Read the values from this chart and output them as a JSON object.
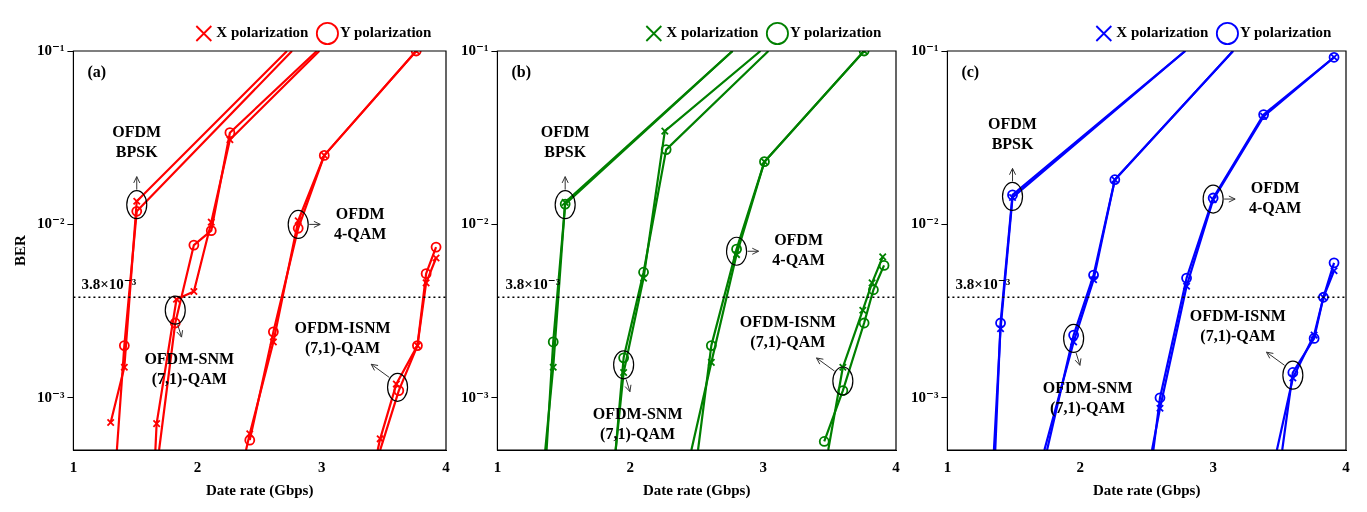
{
  "chart_data": [
    {
      "type": "line",
      "title": "(a)",
      "xlabel": "Date rate (Gbps)",
      "ylabel": "BER",
      "xlim": [
        1,
        4
      ],
      "xticks": [
        1,
        2,
        3,
        4
      ],
      "ylim": [
        0.0005,
        0.1
      ],
      "yticks": [
        {
          "value": 0.001,
          "label": "10⁻³"
        },
        {
          "value": 0.01,
          "label": "10⁻²"
        },
        {
          "value": 0.1,
          "label": "10⁻¹"
        }
      ],
      "log": "y",
      "legend": "top right",
      "line_style": "solid",
      "ref_lines": [
        {
          "axis": "y",
          "value": 0.0038,
          "label": "3.8×10⁻³",
          "color": "#000000",
          "line_style": "dotted"
        }
      ],
      "annotations": [
        {
          "text": "OFDM\nBPSK",
          "x": 1.51,
          "y": 0.013
        },
        {
          "text": "OFDM-SNM\n(7,1)-QAM",
          "x": 1.82,
          "y": 0.0032
        },
        {
          "text": "OFDM\n4-QAM",
          "x": 2.81,
          "y": 0.01
        },
        {
          "text": "OFDM-ISNM\n(7,1)-QAM",
          "x": 3.61,
          "y": 0.00115
        }
      ],
      "series": [
        {
          "name": "X polarization",
          "color": "#ff0000",
          "marker": "cross",
          "x": [
            1.3,
            1.41,
            1.51,
            2.72
          ],
          "values": [
            0.00072,
            0.0015,
            0.0136,
            0.1
          ]
        },
        {
          "name": "Y polarization",
          "color": "#ff0000",
          "marker": "circle",
          "x": [
            1.35,
            1.41,
            1.51,
            2.76
          ],
          "values": [
            0.0005,
            0.002,
            0.0119,
            0.1
          ]
        },
        {
          "color": "#ff0000",
          "marker": "cross",
          "x": [
            1.66,
            1.67,
            1.83,
            1.97,
            2.11,
            2.26,
            2.98
          ],
          "values": [
            0.0005,
            0.00071,
            0.0037,
            0.0041,
            0.0103,
            0.0308,
            0.1
          ]
        },
        {
          "color": "#ff0000",
          "marker": "circle",
          "x": [
            1.69,
            1.82,
            1.97,
            2.11,
            2.26,
            2.96
          ],
          "values": [
            0.0005,
            0.0027,
            0.0076,
            0.0092,
            0.0338,
            0.1
          ]
        },
        {
          "color": "#ff0000",
          "marker": "cross",
          "x": [
            2.39,
            2.42,
            2.61,
            2.81,
            3.02,
            3.76
          ],
          "values": [
            0.0005,
            0.00062,
            0.0021,
            0.0105,
            0.025,
            0.1
          ]
        },
        {
          "color": "#ff0000",
          "marker": "circle",
          "x": [
            2.42,
            2.61,
            2.81,
            3.02,
            3.76
          ],
          "values": [
            0.00057,
            0.0024,
            0.0095,
            0.025,
            0.1
          ]
        },
        {
          "color": "#ff0000",
          "marker": "cross",
          "x": [
            3.45,
            3.47,
            3.6,
            3.77,
            3.84,
            3.92
          ],
          "values": [
            0.0005,
            0.00058,
            0.0012,
            0.002,
            0.0046,
            0.0064
          ]
        },
        {
          "color": "#ff0000",
          "marker": "circle",
          "x": [
            3.47,
            3.62,
            3.77,
            3.84,
            3.92
          ],
          "values": [
            0.0005,
            0.0011,
            0.002,
            0.0052,
            0.0074
          ]
        }
      ]
    },
    {
      "type": "line",
      "title": "(b)",
      "xlabel": "Date rate (Gbps)",
      "xlim": [
        1,
        4
      ],
      "xticks": [
        1,
        2,
        3,
        4
      ],
      "ylim": [
        0.0005,
        0.1
      ],
      "yticks": [
        {
          "value": 0.001,
          "label": "10⁻³"
        },
        {
          "value": 0.01,
          "label": "10⁻²"
        },
        {
          "value": 0.1,
          "label": "10⁻¹"
        }
      ],
      "log": "y",
      "legend": "top right",
      "line_style": "solid",
      "ref_lines": [
        {
          "axis": "y",
          "value": 0.0038,
          "label": "3.8×10⁻³",
          "color": "#000000",
          "line_style": "dotted"
        }
      ],
      "annotations": [
        {
          "text": "OFDM\nBPSK",
          "x": 1.51,
          "y": 0.013
        },
        {
          "text": "OFDM-SNM\n(7,1)-QAM",
          "x": 1.95,
          "y": 0.00155
        },
        {
          "text": "OFDM\n4-QAM",
          "x": 2.8,
          "y": 0.007
        },
        {
          "text": "OFDM-ISNM\n(7,1)-QAM",
          "x": 3.6,
          "y": 0.00125
        }
      ],
      "series": [
        {
          "name": "X polarization",
          "color": "#008000",
          "marker": "cross",
          "x": [
            1.36,
            1.42,
            1.51,
            2.77
          ],
          "values": [
            0.0005,
            0.0015,
            0.0134,
            0.1
          ]
        },
        {
          "name": "Y polarization",
          "color": "#008000",
          "marker": "circle",
          "x": [
            1.37,
            1.42,
            1.51,
            2.77
          ],
          "values": [
            0.0005,
            0.0021,
            0.0131,
            0.1
          ]
        },
        {
          "color": "#008000",
          "marker": "cross",
          "x": [
            1.89,
            1.95,
            2.1,
            2.26,
            2.98
          ],
          "values": [
            0.0005,
            0.0014,
            0.0049,
            0.0345,
            0.1
          ]
        },
        {
          "color": "#008000",
          "marker": "circle",
          "x": [
            1.89,
            1.95,
            2.1,
            2.27,
            3.04
          ],
          "values": [
            0.0005,
            0.0017,
            0.0053,
            0.027,
            0.1
          ]
        },
        {
          "color": "#008000",
          "marker": "cross",
          "x": [
            2.46,
            2.61,
            2.8,
            3.01,
            3.76
          ],
          "values": [
            0.0005,
            0.0016,
            0.0067,
            0.023,
            0.1
          ]
        },
        {
          "color": "#008000",
          "marker": "circle",
          "x": [
            2.51,
            2.61,
            2.8,
            3.01,
            3.76
          ],
          "values": [
            0.0005,
            0.002,
            0.0072,
            0.023,
            0.1
          ]
        },
        {
          "color": "#008000",
          "marker": "cross",
          "x": [
            3.49,
            3.6,
            3.75,
            3.82,
            3.9
          ],
          "values": [
            0.0005,
            0.0015,
            0.0032,
            0.0046,
            0.0065
          ]
        },
        {
          "color": "#008000",
          "marker": "circle",
          "x": [
            3.46,
            3.6,
            3.76,
            3.83,
            3.91
          ],
          "values": [
            0.00056,
            0.0011,
            0.0027,
            0.0042,
            0.0058
          ]
        }
      ]
    },
    {
      "type": "line",
      "title": "(c)",
      "xlabel": "Date rate (Gbps)",
      "xlim": [
        1,
        4
      ],
      "xticks": [
        1,
        2,
        3,
        4
      ],
      "ylim": [
        0.0005,
        0.1
      ],
      "yticks": [
        {
          "value": 0.001,
          "label": "10⁻³"
        },
        {
          "value": 0.01,
          "label": "10⁻²"
        },
        {
          "value": 0.1,
          "label": "10⁻¹"
        }
      ],
      "log": "y",
      "legend": "top right",
      "line_style": "solid",
      "ref_lines": [
        {
          "axis": "y",
          "value": 0.0038,
          "label": "3.8×10⁻³",
          "color": "#000000",
          "line_style": "dotted"
        }
      ],
      "annotations": [
        {
          "text": "OFDM\nBPSK",
          "x": 1.49,
          "y": 0.0145
        },
        {
          "text": "OFDM-SNM\n(7,1)-QAM",
          "x": 1.95,
          "y": 0.0022
        },
        {
          "text": "OFDM\n4-QAM",
          "x": 3.0,
          "y": 0.014
        },
        {
          "text": "OFDM-ISNM\n(7,1)-QAM",
          "x": 3.6,
          "y": 0.00135
        }
      ],
      "series": [
        {
          "name": "X polarization",
          "color": "#0000ff",
          "marker": "cross",
          "x": [
            1.35,
            1.4,
            1.49,
            2.79
          ],
          "values": [
            0.0005,
            0.0025,
            0.0143,
            0.1
          ]
        },
        {
          "name": "Y polarization",
          "color": "#0000ff",
          "marker": "circle",
          "x": [
            1.36,
            1.4,
            1.49,
            2.79
          ],
          "values": [
            0.0005,
            0.0027,
            0.0148,
            0.1
          ]
        },
        {
          "color": "#0000ff",
          "marker": "cross",
          "x": [
            1.73,
            1.95,
            2.1,
            2.26,
            3.15
          ],
          "values": [
            0.0005,
            0.0021,
            0.0048,
            0.0181,
            0.1
          ]
        },
        {
          "color": "#0000ff",
          "marker": "circle",
          "x": [
            1.75,
            1.95,
            2.1,
            2.26,
            3.15
          ],
          "values": [
            0.0005,
            0.0023,
            0.0051,
            0.0181,
            0.1
          ]
        },
        {
          "color": "#0000ff",
          "marker": "cross",
          "x": [
            2.54,
            2.6,
            2.8,
            3.0,
            3.38,
            3.91
          ],
          "values": [
            0.0005,
            0.00087,
            0.0044,
            0.0139,
            0.042,
            0.092
          ]
        },
        {
          "color": "#0000ff",
          "marker": "circle",
          "x": [
            2.55,
            2.6,
            2.8,
            3.0,
            3.38,
            3.91
          ],
          "values": [
            0.0005,
            0.001,
            0.0049,
            0.0142,
            0.043,
            0.092
          ]
        },
        {
          "color": "#0000ff",
          "marker": "cross",
          "x": [
            3.48,
            3.6,
            3.76,
            3.83,
            3.91
          ],
          "values": [
            0.0005,
            0.0013,
            0.0023,
            0.0038,
            0.0054
          ]
        },
        {
          "color": "#0000ff",
          "marker": "circle",
          "x": [
            3.52,
            3.6,
            3.76,
            3.83,
            3.91
          ],
          "values": [
            0.0005,
            0.0014,
            0.0022,
            0.0038,
            0.006
          ]
        }
      ]
    }
  ]
}
